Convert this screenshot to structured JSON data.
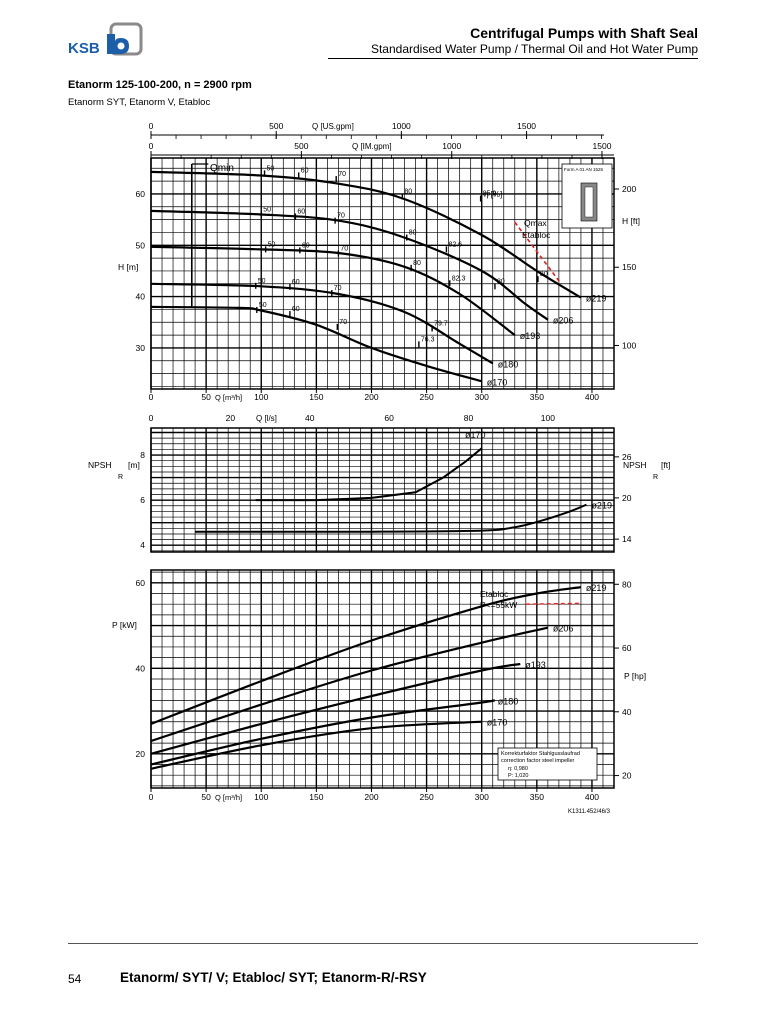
{
  "header": {
    "title": "Centrifugal Pumps with Shaft Seal",
    "subtitle": "Standardised Water Pump / Thermal Oil and Hot Water Pump",
    "logo_text": "KSB",
    "brand_color": "#1c5fa8"
  },
  "chart_title": "Etanorm 125-100-200, n = 2900 rpm",
  "chart_subtitle": "Etanorm SYT, Etanorm V, Etabloc",
  "footer": {
    "page": "54",
    "text": "Etanorm/ SYT/ V; Etabloc/ SYT; Etanorm-R/-RSY"
  },
  "drawing_number": "K1311.452/46/3",
  "chart_data": [
    {
      "type": "line",
      "name": "head",
      "xlabel": "Q [m³/h]",
      "ylabel": "H [m]",
      "y2label": "H [ft]",
      "xlim": [
        0,
        420
      ],
      "ylim": [
        22,
        67
      ],
      "xticks": [
        0,
        50,
        100,
        150,
        200,
        250,
        300,
        350,
        400
      ],
      "yticks": [
        30,
        40,
        50,
        60
      ],
      "y2ticks": [
        {
          "label": "100",
          "value": 30.48
        },
        {
          "label": "150",
          "value": 45.72
        },
        {
          "label": "200",
          "value": 60.96
        }
      ],
      "top_axes": [
        {
          "label": "Q [US.gpm]",
          "tick_labels": [
            "0",
            "500",
            "1000",
            "1500"
          ],
          "ticks_m3h": [
            0,
            113.6,
            227.1,
            340.7
          ]
        },
        {
          "label": "Q [IM.gpm]",
          "tick_labels": [
            "0",
            "500",
            "1000",
            "1500"
          ],
          "ticks_m3h": [
            0,
            136.4,
            272.8,
            409.1
          ]
        }
      ],
      "grid": true,
      "series": [
        {
          "name": "ø219",
          "x": [
            0,
            100,
            170,
            230,
            300,
            350,
            390
          ],
          "y": [
            64.3,
            63.6,
            62.0,
            59.0,
            52.0,
            45.0,
            39.8
          ]
        },
        {
          "name": "ø206",
          "x": [
            0,
            100,
            170,
            230,
            300,
            340,
            360
          ],
          "y": [
            56.7,
            56.0,
            54.8,
            51.5,
            45.0,
            38.5,
            35.5
          ]
        },
        {
          "name": "ø193",
          "x": [
            0,
            100,
            170,
            230,
            280,
            330
          ],
          "y": [
            49.7,
            49.2,
            48.5,
            45.8,
            40.5,
            32.5
          ]
        },
        {
          "name": "ø180",
          "x": [
            0,
            100,
            170,
            230,
            280,
            310
          ],
          "y": [
            42.5,
            42.0,
            40.5,
            37.0,
            30.8,
            27.0
          ]
        },
        {
          "name": "ø170",
          "x": [
            0,
            80,
            100,
            150,
            200,
            250,
            300
          ],
          "y": [
            38.0,
            37.8,
            37.3,
            34.5,
            30.0,
            26.5,
            23.5
          ]
        }
      ],
      "efficiency_labels": [
        "50",
        "60",
        "70",
        "80",
        "82.6",
        "82.3",
        "85.9",
        "79.7",
        "76.3"
      ],
      "annotations": [
        "Qmin",
        "η [%]",
        "Qmax",
        "Etabloc",
        "Form A 01 AN 1526"
      ]
    },
    {
      "type": "line",
      "name": "npsh",
      "xlabel": "Q [l/s]",
      "x_tick_labels": [
        "0",
        "20",
        "40",
        "60",
        "80",
        "100"
      ],
      "x_ticks_m3h": [
        0,
        72,
        144,
        216,
        288,
        360
      ],
      "ylabel": "NPSHR [m]",
      "y2label": "NPSHR [ft]",
      "xlim": [
        0,
        420
      ],
      "ylim": [
        3.7,
        9.2
      ],
      "yticks": [
        4,
        6,
        8
      ],
      "y2ticks": [
        {
          "label": "14",
          "value": 4.27
        },
        {
          "label": "20",
          "value": 6.1
        },
        {
          "label": "26",
          "value": 7.92
        }
      ],
      "grid": true,
      "series": [
        {
          "name": "ø170",
          "x": [
            95,
            150,
            200,
            240,
            265,
            285,
            300
          ],
          "y": [
            6.0,
            6.0,
            6.1,
            6.35,
            7.0,
            7.7,
            8.3
          ]
        },
        {
          "name": "ø219",
          "x": [
            40,
            100,
            200,
            300,
            330,
            355,
            380,
            395
          ],
          "y": [
            4.6,
            4.6,
            4.6,
            4.65,
            4.8,
            5.1,
            5.5,
            5.8
          ]
        }
      ]
    },
    {
      "type": "line",
      "name": "power",
      "xlabel": "Q [m³/h]",
      "ylabel": "P [kW]",
      "y2label": "P [hp]",
      "xlim": [
        0,
        420
      ],
      "ylim": [
        12,
        63
      ],
      "xticks": [
        0,
        50,
        100,
        150,
        200,
        250,
        300,
        350,
        400
      ],
      "yticks": [
        20,
        40,
        60
      ],
      "y2ticks": [
        {
          "label": "20",
          "value": 14.91
        },
        {
          "label": "40",
          "value": 29.83
        },
        {
          "label": "60",
          "value": 44.74
        },
        {
          "label": "80",
          "value": 59.66
        }
      ],
      "grid": true,
      "series": [
        {
          "name": "ø219",
          "x": [
            0,
            100,
            200,
            300,
            350,
            390
          ],
          "y": [
            27.0,
            37.0,
            46.5,
            54.5,
            57.5,
            59.0
          ]
        },
        {
          "name": "ø206",
          "x": [
            0,
            100,
            200,
            300,
            360
          ],
          "y": [
            23.0,
            31.5,
            39.5,
            46.0,
            49.5
          ]
        },
        {
          "name": "ø193",
          "x": [
            0,
            100,
            200,
            300,
            335
          ],
          "y": [
            20.0,
            27.0,
            33.5,
            39.5,
            41.0
          ]
        },
        {
          "name": "ø180",
          "x": [
            0,
            100,
            200,
            300,
            310
          ],
          "y": [
            17.5,
            23.5,
            28.5,
            32.0,
            32.5
          ]
        },
        {
          "name": "ø170",
          "x": [
            0,
            100,
            200,
            300
          ],
          "y": [
            16.5,
            22.0,
            26.0,
            27.5
          ]
        }
      ],
      "annotations": [
        "Etabloc",
        "P<=55kW"
      ],
      "correction_box": {
        "heading_de": "Korrekturfaktor Stahlgusslaufrad",
        "heading_en": "correction factor steel impeller",
        "eta": "η: 0,980",
        "power": "P: 1,020"
      }
    }
  ]
}
